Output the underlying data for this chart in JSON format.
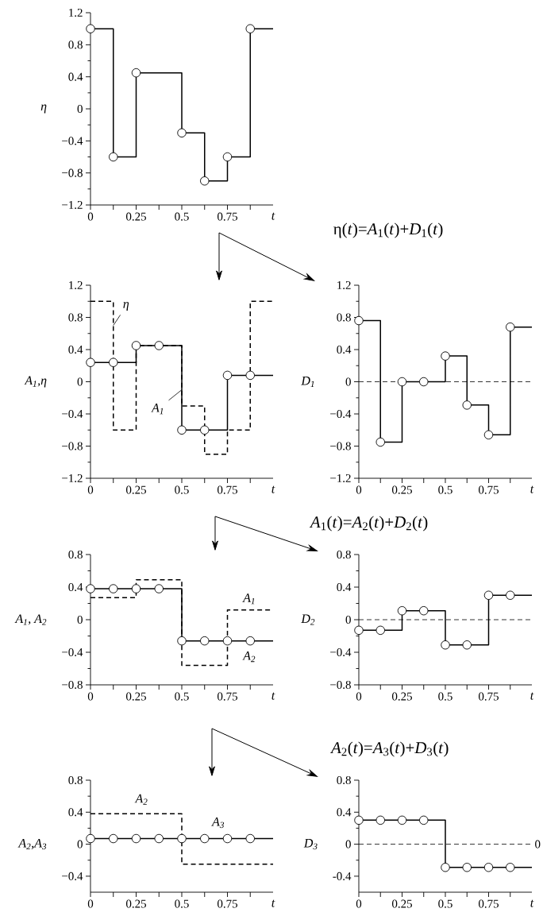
{
  "chart_data": [
    {
      "type": "step",
      "xlabel": "t",
      "ylabel": "η",
      "xlim": [
        0,
        1
      ],
      "ylim": [
        -1.2,
        1.2
      ],
      "xticks": [
        0,
        {
          "value": 0.125,
          "label": null
        },
        0.25,
        {
          "value": 0.375,
          "label": null
        },
        0.5,
        {
          "value": 0.625,
          "label": null
        },
        0.75,
        {
          "value": 0.875,
          "label": null
        }
      ],
      "yticks": [
        1.2,
        {
          "value": 1.0,
          "label": null
        },
        0.8,
        {
          "value": 0.6,
          "label": null
        },
        0.4,
        {
          "value": 0.2,
          "label": null
        },
        0,
        {
          "value": -0.2,
          "label": null
        },
        {
          "value": -0.4,
          "label": "−0.4"
        },
        {
          "value": -0.6,
          "label": null
        },
        {
          "value": -0.8,
          "label": "−0.8"
        },
        {
          "value": -1.0,
          "label": null
        },
        {
          "value": -1.2,
          "label": "−1.2"
        }
      ],
      "series": [
        {
          "color": "#000000",
          "line_style": "solid",
          "marker": "circle",
          "x": [
            0,
            0.125,
            0.25,
            0.5,
            0.625,
            0.75,
            0.875,
            1
          ],
          "values": [
            1.0,
            -0.6,
            0.45,
            -0.3,
            -0.9,
            -0.6,
            1.0,
            1.0
          ]
        }
      ]
    },
    {
      "type": "step",
      "xlabel": "t",
      "ylabel": "A$_{1}$,η",
      "xlim": [
        0,
        1
      ],
      "ylim": [
        -1.2,
        1.2
      ],
      "xticks": [
        0,
        {
          "value": 0.125,
          "label": null
        },
        0.25,
        {
          "value": 0.375,
          "label": null
        },
        0.5,
        {
          "value": 0.625,
          "label": null
        },
        0.75,
        {
          "value": 0.875,
          "label": null
        }
      ],
      "yticks": [
        1.2,
        {
          "value": 1.0,
          "label": null
        },
        0.8,
        {
          "value": 0.6,
          "label": null
        },
        0.4,
        {
          "value": 0.2,
          "label": null
        },
        0,
        {
          "value": -0.2,
          "label": null
        },
        {
          "value": -0.4,
          "label": "−0.4"
        },
        {
          "value": -0.6,
          "label": null
        },
        {
          "value": -0.8,
          "label": "−0.8"
        },
        {
          "value": -1.0,
          "label": null
        },
        {
          "value": -1.2,
          "label": "−1.2"
        }
      ],
      "series": [
        {
          "color": "#000000",
          "line_style": "dashed",
          "marker": "none",
          "x": [
            0,
            0.125,
            0.25,
            0.5,
            0.625,
            0.75,
            0.875,
            1
          ],
          "values": [
            1.0,
            -0.6,
            0.45,
            -0.3,
            -0.9,
            -0.6,
            1.0,
            1.0
          ]
        },
        {
          "color": "#000000",
          "line_style": "solid",
          "marker": "circle",
          "x": [
            0,
            0.125,
            0.25,
            0.375,
            0.5,
            0.625,
            0.75,
            0.875,
            1
          ],
          "values": [
            0.24,
            0.24,
            0.45,
            0.45,
            -0.6,
            -0.6,
            0.08,
            0.08,
            0.08
          ]
        }
      ],
      "annotations": [
        {
          "text": "η",
          "x": 0.125,
          "y": 0.7
        },
        {
          "text": "A$_{1}$",
          "x": 0.5,
          "y": -0.1
        }
      ]
    },
    {
      "type": "step",
      "title": "η(*t*)=*A*$_{1}$(*t*)+*D*$_{1}$(*t*)",
      "xlabel": "t",
      "ylabel": "D$_{1}$",
      "xlim": [
        0,
        1
      ],
      "ylim": [
        -1.2,
        1.2
      ],
      "xticks": [
        0,
        {
          "value": 0.125,
          "label": null
        },
        0.25,
        {
          "value": 0.375,
          "label": null
        },
        0.5,
        {
          "value": 0.625,
          "label": null
        },
        0.75,
        {
          "value": 0.875,
          "label": null
        }
      ],
      "yticks": [
        1.2,
        {
          "value": 1.0,
          "label": null
        },
        0.8,
        {
          "value": 0.6,
          "label": null
        },
        0.4,
        {
          "value": 0.2,
          "label": null
        },
        0,
        {
          "value": -0.2,
          "label": null
        },
        {
          "value": -0.4,
          "label": "−0.4"
        },
        {
          "value": -0.6,
          "label": null
        },
        {
          "value": -0.8,
          "label": "−0.8"
        },
        {
          "value": -1.0,
          "label": null
        },
        {
          "value": -1.2,
          "label": "−1.2"
        }
      ],
      "series": [
        {
          "color": "#000000",
          "line_style": "solid",
          "marker": "circle",
          "x": [
            0,
            0.125,
            0.25,
            0.375,
            0.5,
            0.625,
            0.75,
            0.875,
            1
          ],
          "values": [
            0.76,
            -0.75,
            0,
            0,
            0.32,
            -0.29,
            -0.66,
            0.68,
            0.68
          ]
        }
      ],
      "ref_lines": [
        {
          "axis": "y",
          "value": 0,
          "line_style": "dashed"
        }
      ]
    },
    {
      "type": "step",
      "xlabel": "t",
      "ylabel": "A$_{1}$, A$_{2}$",
      "xlim": [
        0,
        1
      ],
      "ylim": [
        -0.8,
        0.8
      ],
      "xticks": [
        0,
        {
          "value": 0.125,
          "label": null
        },
        0.25,
        {
          "value": 0.375,
          "label": null
        },
        0.5,
        {
          "value": 0.625,
          "label": null
        },
        0.75,
        {
          "value": 0.875,
          "label": null
        }
      ],
      "yticks": [
        0.8,
        {
          "value": 0.6,
          "label": null
        },
        0.4,
        {
          "value": 0.2,
          "label": null
        },
        0,
        {
          "value": -0.2,
          "label": null
        },
        {
          "value": -0.4,
          "label": "−0.4"
        },
        {
          "value": -0.6,
          "label": null
        },
        {
          "value": -0.8,
          "label": "−0.8"
        }
      ],
      "series": [
        {
          "color": "#000000",
          "line_style": "dashed",
          "marker": "none",
          "x": [
            0,
            0.25,
            0.5,
            0.75,
            1
          ],
          "values": [
            0.27,
            0.49,
            -0.56,
            0.12,
            0.12
          ]
        },
        {
          "color": "#000000",
          "line_style": "solid",
          "marker": "circle",
          "x": [
            0,
            0.125,
            0.25,
            0.375,
            0.5,
            0.625,
            0.75,
            0.875,
            1
          ],
          "values": [
            0.38,
            0.38,
            0.38,
            0.38,
            -0.26,
            -0.26,
            -0.26,
            -0.26,
            -0.26
          ]
        }
      ],
      "annotations": [
        {
          "text": "A$_{1}$",
          "x": 0.87,
          "y": 0.12
        },
        {
          "text": "A$_{2}$",
          "x": 0.87,
          "y": -0.26
        }
      ]
    },
    {
      "type": "step",
      "title": "*A*$_{1}$(*t*)=*A*$_{2}$(*t*)+*D*$_{2}$(*t*)",
      "xlabel": "t",
      "ylabel": "D$_{2}$",
      "xlim": [
        0,
        1
      ],
      "ylim": [
        -0.8,
        0.8
      ],
      "xticks": [
        0,
        {
          "value": 0.125,
          "label": null
        },
        0.25,
        {
          "value": 0.375,
          "label": null
        },
        0.5,
        {
          "value": 0.625,
          "label": null
        },
        0.75,
        {
          "value": 0.875,
          "label": null
        }
      ],
      "yticks": [
        0.8,
        {
          "value": 0.6,
          "label": null
        },
        0.4,
        {
          "value": 0.2,
          "label": null
        },
        0,
        {
          "value": -0.2,
          "label": null
        },
        {
          "value": -0.4,
          "label": "−0.4"
        },
        {
          "value": -0.6,
          "label": null
        },
        {
          "value": -0.8,
          "label": "−0.8"
        }
      ],
      "series": [
        {
          "color": "#000000",
          "line_style": "solid",
          "marker": "circle",
          "x": [
            0,
            0.125,
            0.25,
            0.375,
            0.5,
            0.625,
            0.75,
            0.875,
            1
          ],
          "values": [
            -0.13,
            -0.13,
            0.11,
            0.11,
            -0.31,
            -0.31,
            0.3,
            0.3,
            0.3
          ]
        }
      ],
      "ref_lines": [
        {
          "axis": "y",
          "value": 0,
          "line_style": "dashed"
        }
      ]
    },
    {
      "type": "step",
      "xlabel": "t",
      "ylabel": "A$_{2}$,A$_{3}$",
      "xlim": [
        0,
        1
      ],
      "ylim": [
        -0.6,
        0.8
      ],
      "xticks": [
        0,
        {
          "value": 0.125,
          "label": null
        },
        0.25,
        {
          "value": 0.375,
          "label": null
        },
        0.5,
        {
          "value": 0.625,
          "label": null
        },
        0.75,
        {
          "value": 0.875,
          "label": null
        }
      ],
      "yticks": [
        0.8,
        {
          "value": 0.6,
          "label": null
        },
        0.4,
        {
          "value": 0.2,
          "label": null
        },
        0,
        {
          "value": -0.2,
          "label": null
        },
        {
          "value": -0.4,
          "label": "−0.4"
        }
      ],
      "series": [
        {
          "color": "#000000",
          "line_style": "dashed",
          "marker": "none",
          "x": [
            0,
            0.5,
            1
          ],
          "values": [
            0.38,
            -0.25,
            -0.25
          ]
        },
        {
          "color": "#000000",
          "line_style": "solid",
          "marker": "circle",
          "x": [
            0,
            0.125,
            0.25,
            0.375,
            0.5,
            0.625,
            0.75,
            0.875,
            1
          ],
          "values": [
            0.07,
            0.07,
            0.07,
            0.07,
            0.07,
            0.07,
            0.07,
            0.07,
            0.07
          ]
        }
      ],
      "annotations": [
        {
          "text": "A$_{2}$",
          "x": 0.28,
          "y": 0.38
        },
        {
          "text": "A$_{3}$",
          "x": 0.7,
          "y": 0.07
        }
      ]
    },
    {
      "type": "step",
      "title": "*A*$_{2}$(*t*)=*A*$_{3}$(*t*)+*D*$_{3}$(*t*)",
      "xlabel": "t",
      "ylabel": "D$_{3}$",
      "xlim": [
        0,
        1
      ],
      "ylim": [
        -0.6,
        0.8
      ],
      "xticks": [
        0,
        {
          "value": 0.125,
          "label": null
        },
        0.25,
        {
          "value": 0.375,
          "label": null
        },
        0.5,
        {
          "value": 0.625,
          "label": null
        },
        0.75,
        {
          "value": 0.875,
          "label": null
        }
      ],
      "yticks": [
        0.8,
        {
          "value": 0.6,
          "label": null
        },
        0.4,
        {
          "value": 0.2,
          "label": null
        },
        0,
        {
          "value": -0.2,
          "label": null
        },
        -0.4
      ],
      "series": [
        {
          "color": "#000000",
          "line_style": "solid",
          "marker": "circle",
          "x": [
            0,
            0.125,
            0.25,
            0.375,
            0.5,
            0.625,
            0.75,
            0.875,
            1
          ],
          "values": [
            0.3,
            0.3,
            0.3,
            0.3,
            -0.29,
            -0.29,
            -0.29,
            -0.29,
            -0.29
          ]
        }
      ],
      "ref_lines": [
        {
          "axis": "y",
          "value": 0,
          "line_style": "dashed",
          "label": "0"
        }
      ]
    }
  ]
}
